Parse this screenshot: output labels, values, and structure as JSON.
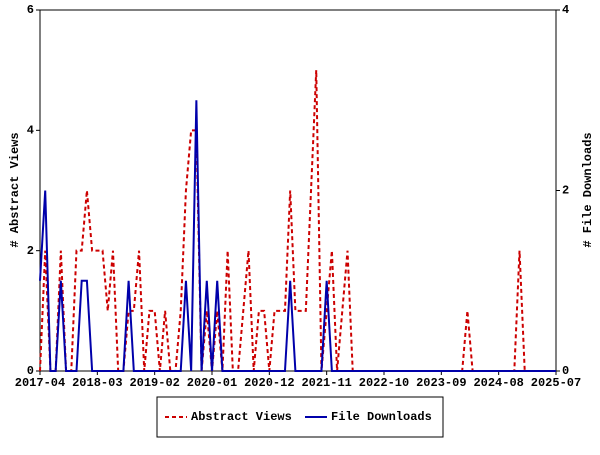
{
  "chart_data": {
    "type": "line",
    "x": [
      "2017-04",
      "2017-05",
      "2017-06",
      "2017-07",
      "2017-08",
      "2017-09",
      "2017-10",
      "2017-11",
      "2017-12",
      "2018-01",
      "2018-02",
      "2018-03",
      "2018-04",
      "2018-05",
      "2018-06",
      "2018-07",
      "2018-08",
      "2018-09",
      "2018-10",
      "2018-11",
      "2018-12",
      "2019-01",
      "2019-02",
      "2019-03",
      "2019-04",
      "2019-05",
      "2019-06",
      "2019-07",
      "2019-08",
      "2019-09",
      "2019-10",
      "2019-11",
      "2019-12",
      "2020-01",
      "2020-02",
      "2020-03",
      "2020-04",
      "2020-05",
      "2020-06",
      "2020-07",
      "2020-08",
      "2020-09",
      "2020-10",
      "2020-11",
      "2020-12",
      "2021-01",
      "2021-02",
      "2021-03",
      "2021-04",
      "2021-05",
      "2021-06",
      "2021-07",
      "2021-08",
      "2021-09",
      "2021-10",
      "2021-11",
      "2021-12",
      "2022-01",
      "2022-02",
      "2022-03",
      "2022-04",
      "2022-05",
      "2022-06",
      "2022-07",
      "2022-08",
      "2022-09",
      "2022-10",
      "2022-11",
      "2022-12",
      "2023-01",
      "2023-02",
      "2023-03",
      "2023-04",
      "2023-05",
      "2023-06",
      "2023-07",
      "2023-08",
      "2023-09",
      "2023-10",
      "2023-11",
      "2023-12",
      "2024-01",
      "2024-02",
      "2024-03",
      "2024-04",
      "2024-05",
      "2024-06",
      "2024-07",
      "2024-08",
      "2024-09",
      "2024-10",
      "2024-11",
      "2024-12",
      "2025-01",
      "2025-02",
      "2025-03",
      "2025-04",
      "2025-05",
      "2025-06",
      "2025-07"
    ],
    "xticks": [
      "2017-04",
      "2018-03",
      "2019-02",
      "2020-01",
      "2020-12",
      "2021-11",
      "2022-10",
      "2023-09",
      "2024-08",
      "2025-07"
    ],
    "y_label": "# Abstract Views",
    "y2_label": "# File Downloads",
    "ylim": [
      0,
      6
    ],
    "yticks": [
      0,
      2,
      4,
      6
    ],
    "y2lim": [
      0,
      4
    ],
    "y2ticks": [
      0,
      2,
      4
    ],
    "legend": "bottom",
    "series": [
      {
        "name": "Abstract Views",
        "color": "#cc0000",
        "dash": true,
        "values": [
          0,
          2,
          0,
          0,
          2,
          0,
          0,
          2,
          2,
          3,
          2,
          2,
          2,
          1,
          2,
          0,
          0,
          1,
          1,
          2,
          0,
          1,
          1,
          0,
          1,
          0,
          0,
          1,
          3,
          4,
          4,
          0,
          1,
          0,
          1,
          0,
          2,
          0,
          0,
          1,
          2,
          0,
          1,
          1,
          0,
          1,
          1,
          1,
          3,
          1,
          1,
          1,
          3,
          5,
          0,
          1,
          2,
          0,
          1,
          2,
          0,
          0,
          0,
          0,
          0,
          0,
          0,
          0,
          0,
          0,
          0,
          0,
          0,
          0,
          0,
          0,
          0,
          0,
          0,
          0,
          0,
          0,
          1,
          0,
          0,
          0,
          0,
          0,
          0,
          0,
          0,
          0,
          2,
          0,
          0,
          0,
          0,
          0,
          0,
          0
        ]
      },
      {
        "name": "File Downloads",
        "color": "#0000aa",
        "dash": false,
        "axis": "y2",
        "values": [
          1,
          2,
          0,
          0,
          1,
          0,
          0,
          0,
          1,
          1,
          0,
          0,
          0,
          0,
          0,
          0,
          0,
          1,
          0,
          0,
          0,
          0,
          0,
          0,
          0,
          0,
          0,
          0,
          1,
          0,
          3,
          0,
          1,
          0,
          1,
          0,
          0,
          0,
          0,
          0,
          0,
          0,
          0,
          0,
          0,
          0,
          0,
          0,
          1,
          0,
          0,
          0,
          0,
          0,
          0,
          1,
          0,
          0,
          0,
          0,
          0,
          0,
          0,
          0,
          0,
          0,
          0,
          0,
          0,
          0,
          0,
          0,
          0,
          0,
          0,
          0,
          0,
          0,
          0,
          0,
          0,
          0,
          0,
          0,
          0,
          0,
          0,
          0,
          0,
          0,
          0,
          0,
          0,
          0,
          0,
          0,
          0,
          0,
          0,
          0
        ]
      }
    ]
  }
}
